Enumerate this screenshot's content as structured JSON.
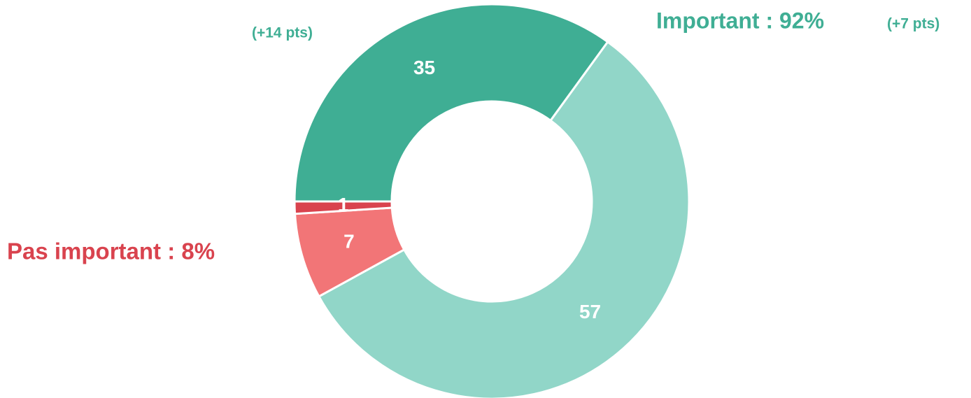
{
  "chart_data": {
    "type": "donut",
    "values": [
      35,
      57,
      7,
      1
    ],
    "colors": [
      "#3fae94",
      "#91d6c8",
      "#f27577",
      "#d9434e"
    ],
    "start_angle": -90,
    "annotations": [
      {
        "text": "Important : 92%",
        "color": "#3fae94"
      },
      {
        "text": "(+7 pts)",
        "color": "#3fae94"
      },
      {
        "text": "(+14 pts)",
        "color": "#3fae94"
      },
      {
        "text": "Pas important : 8%",
        "color": "#d9434e"
      }
    ]
  }
}
